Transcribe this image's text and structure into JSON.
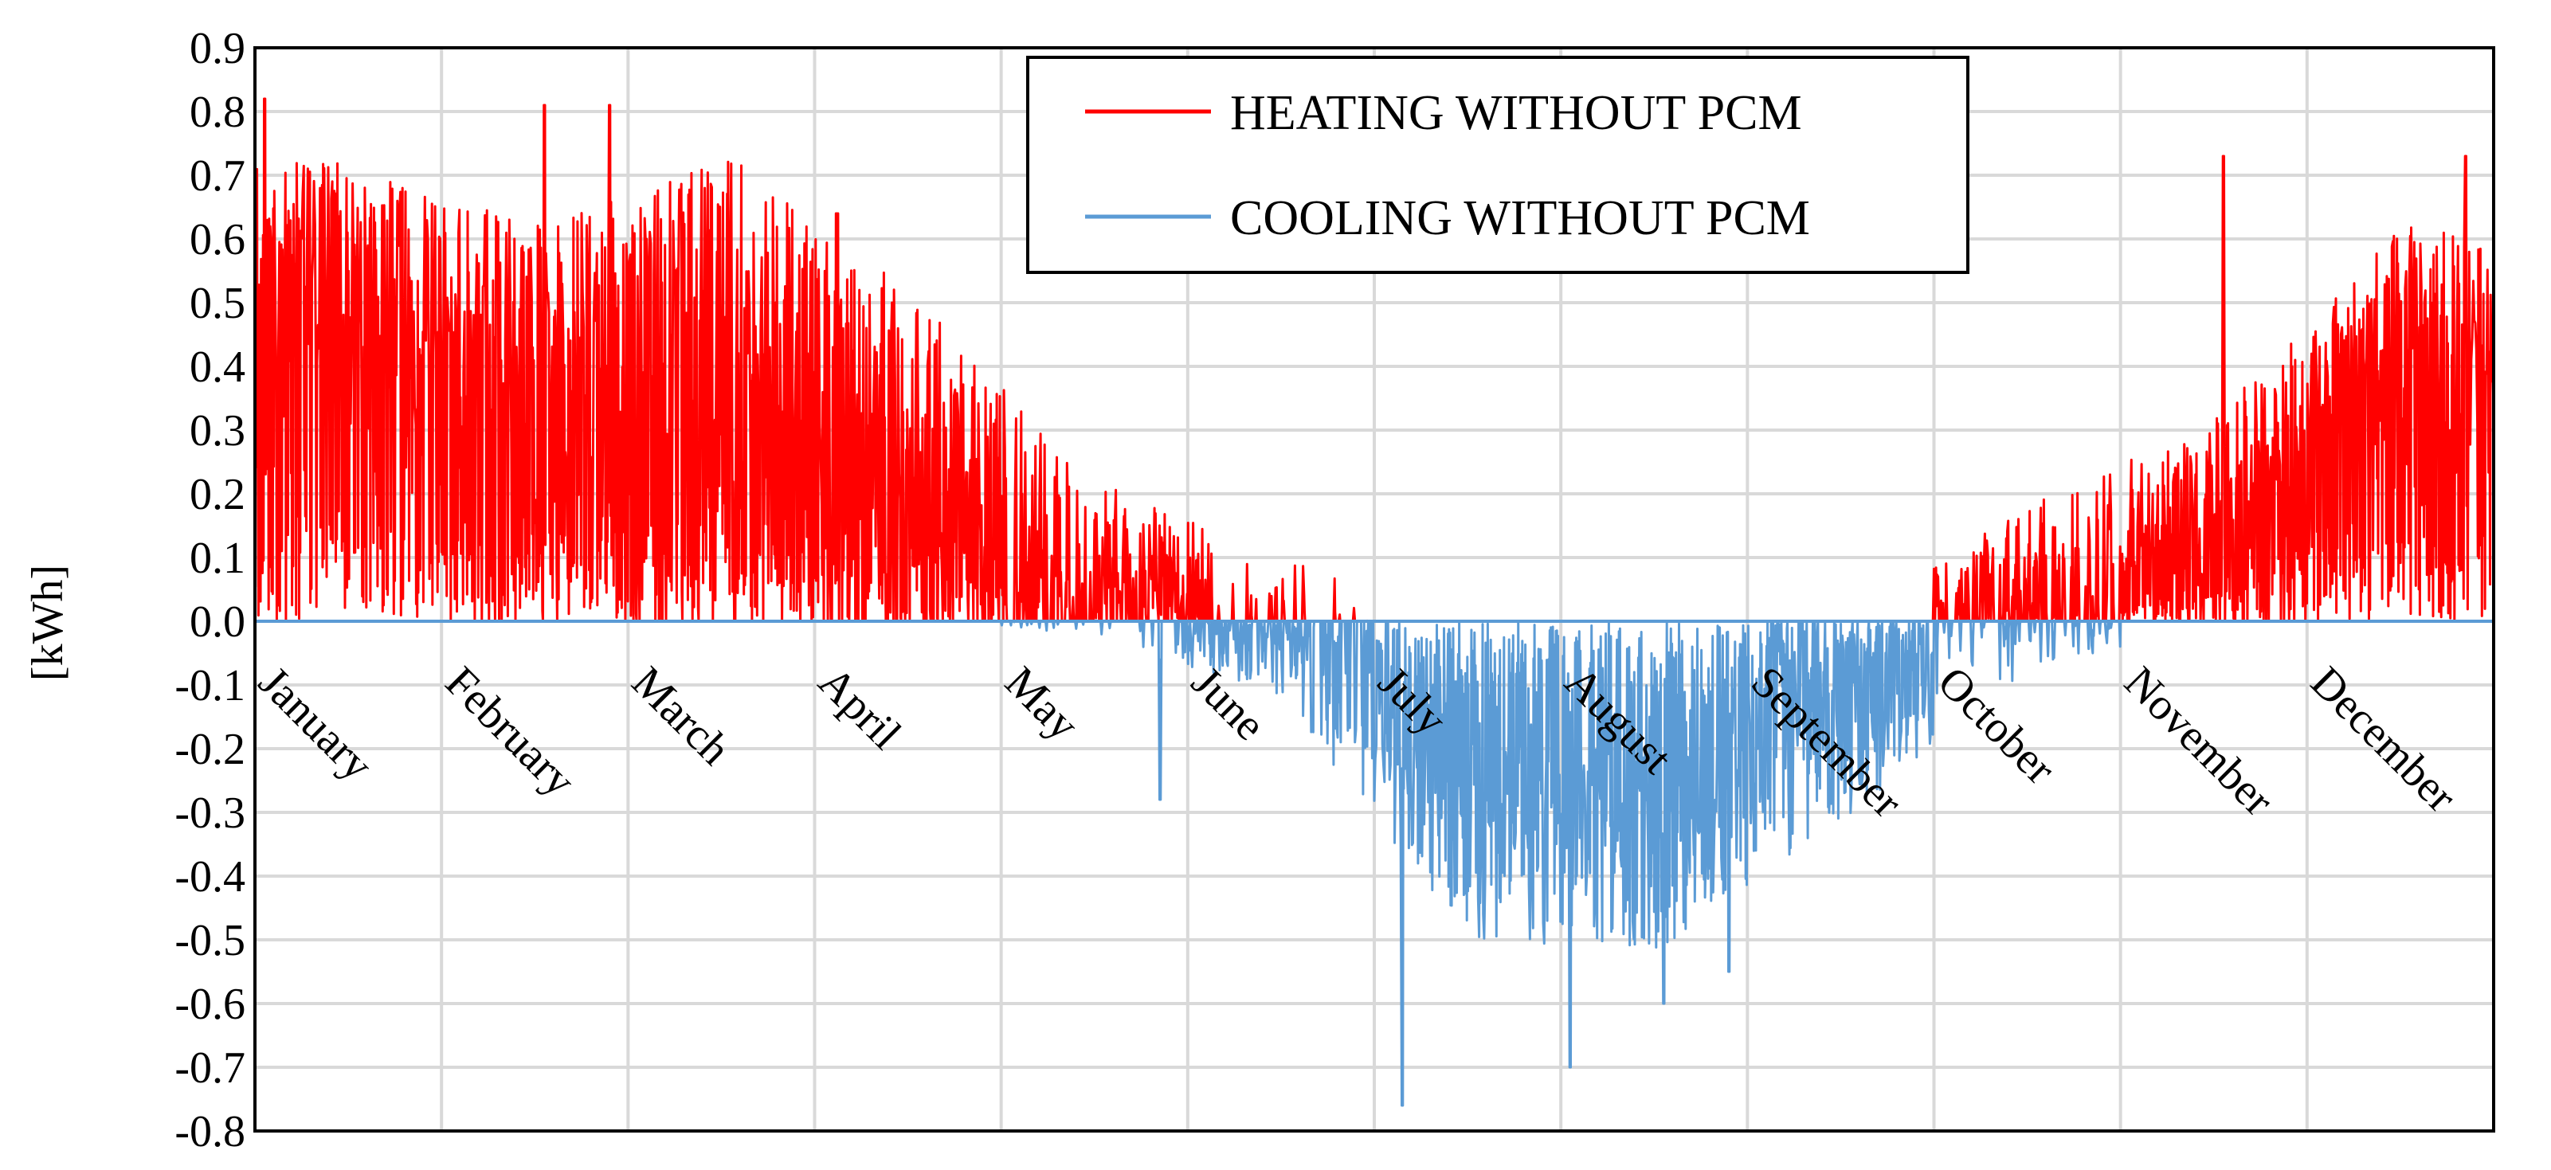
{
  "chart_data": {
    "type": "line",
    "title": "",
    "xlabel": "",
    "ylabel": "[kWh]",
    "ylim": [
      -0.8,
      0.9
    ],
    "ytick_step": 0.1,
    "grid": true,
    "legend_position": "top-center",
    "categories": [
      "January",
      "February",
      "March",
      "April",
      "May",
      "June",
      "July",
      "August",
      "September",
      "October",
      "November",
      "December"
    ],
    "ytick_labels": [
      "0.9",
      "0.8",
      "0.7",
      "0.6",
      "0.5",
      "0.4",
      "0.3",
      "0.2",
      "0.1",
      "0.0",
      "-0.1",
      "-0.2",
      "-0.3",
      "-0.4",
      "-0.5",
      "-0.6",
      "-0.7",
      "-0.8"
    ],
    "series": [
      {
        "name": "HEATING WITHOUT PCM",
        "color": "#ff0000",
        "sign": 1,
        "monthly_upper": [
          0.72,
          0.62,
          0.74,
          0.52,
          0.22,
          0.1,
          0.0,
          0.0,
          0.0,
          0.18,
          0.32,
          0.62
        ],
        "monthly_lower": [
          0.3,
          0.12,
          0.18,
          0.05,
          0.0,
          0.0,
          0.0,
          0.0,
          0.0,
          0.0,
          0.05,
          0.2
        ],
        "monthly_active": [
          1.0,
          0.95,
          0.92,
          0.85,
          0.55,
          0.18,
          0.0,
          0.0,
          0.0,
          0.45,
          0.9,
          1.0
        ],
        "peaks": [
          {
            "month": 0.05,
            "value": 0.82
          },
          {
            "month": 1.55,
            "value": 0.81
          },
          {
            "month": 1.9,
            "value": 0.81
          },
          {
            "month": 3.12,
            "value": 0.64
          },
          {
            "month": 10.55,
            "value": 0.73
          },
          {
            "month": 11.85,
            "value": 0.73
          }
        ]
      },
      {
        "name": "COOLING WITHOUT PCM",
        "color": "#5b9bd5",
        "sign": -1,
        "monthly_upper": [
          0.0,
          0.0,
          0.0,
          0.0,
          0.02,
          0.12,
          0.5,
          0.52,
          0.32,
          0.08,
          0.0,
          0.0
        ],
        "monthly_lower": [
          0.0,
          0.0,
          0.0,
          0.0,
          0.0,
          0.0,
          0.1,
          0.1,
          0.02,
          0.0,
          0.0,
          0.0
        ],
        "monthly_active": [
          0.0,
          0.0,
          0.0,
          0.0,
          0.08,
          0.55,
          1.0,
          1.0,
          0.85,
          0.18,
          0.0,
          0.0
        ],
        "peaks": [
          {
            "month": 4.85,
            "value": -0.28
          },
          {
            "month": 6.15,
            "value": -0.76
          },
          {
            "month": 7.05,
            "value": -0.7
          },
          {
            "month": 7.55,
            "value": -0.6
          },
          {
            "month": 7.9,
            "value": -0.55
          }
        ]
      }
    ]
  }
}
